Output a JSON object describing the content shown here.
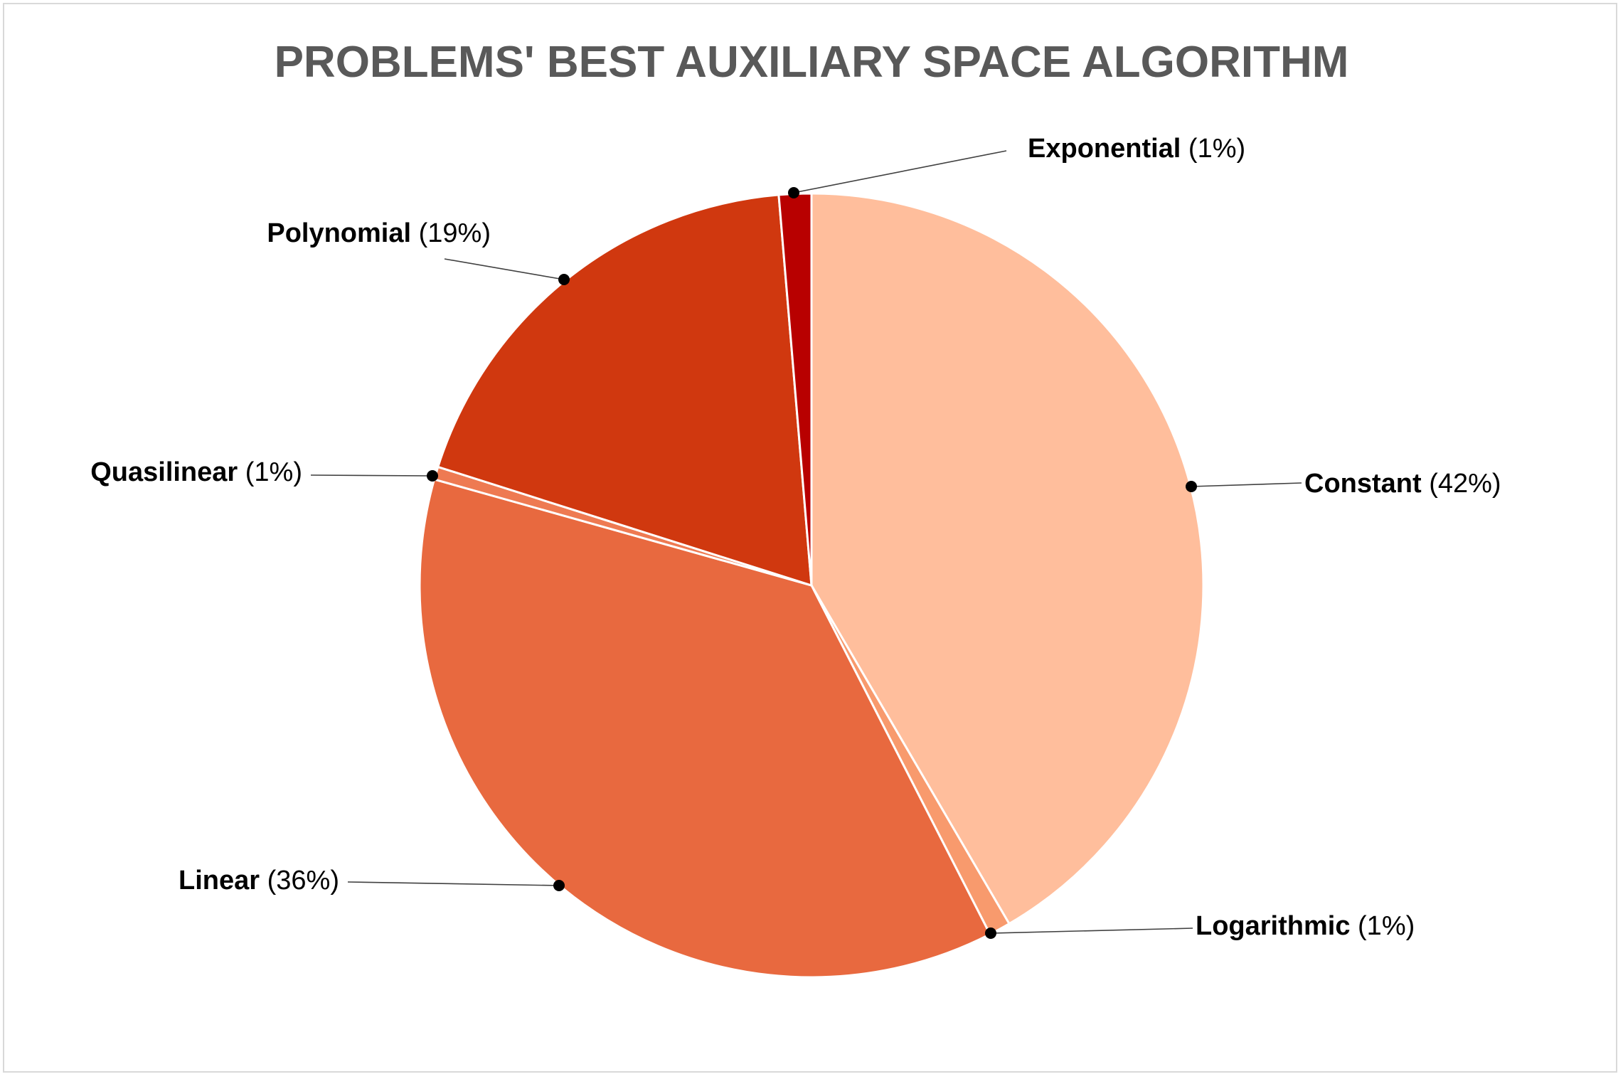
{
  "chart_data": {
    "type": "pie",
    "title": "PROBLEMS' BEST AUXILIARY SPACE ALGORITHM",
    "slices": [
      {
        "name": "Constant",
        "value": 42,
        "color": "#FFBE9C"
      },
      {
        "name": "Logarithmic",
        "value": 1,
        "color": "#F89A6D"
      },
      {
        "name": "Linear",
        "value": 36,
        "color": "#E8693F"
      },
      {
        "name": "Quasilinear",
        "value": 1,
        "color": "#EE7A52"
      },
      {
        "name": "Polynomial",
        "value": 19,
        "color": "#D0380F"
      },
      {
        "name": "Exponential",
        "value": 1,
        "color": "#B80000"
      }
    ],
    "labels": [
      {
        "name": "Constant",
        "pct": "(42%)"
      },
      {
        "name": "Logarithmic",
        "pct": "(1%)"
      },
      {
        "name": "Linear",
        "pct": "(36%)"
      },
      {
        "name": "Quasilinear",
        "pct": "(1%)"
      },
      {
        "name": "Polynomial",
        "pct": "(19%)"
      },
      {
        "name": "Exponential",
        "pct": "(1%)"
      }
    ],
    "legend": "none"
  }
}
